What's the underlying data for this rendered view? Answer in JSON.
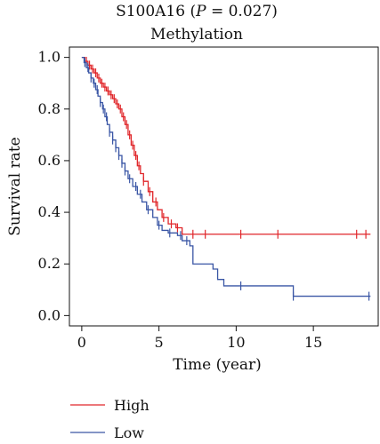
{
  "chart_data": {
    "type": "line",
    "title": "S100A16 (P = 0.027)",
    "title_parts": {
      "gene": "S100A16 (",
      "p_symbol": "P",
      "p_value": " = 0.027)"
    },
    "subtitle": "Methylation",
    "xlabel": "Time (year)",
    "ylabel": "Survival rate",
    "xlim": [
      -0.8,
      19.2
    ],
    "ylim": [
      -0.04,
      1.04
    ],
    "x_ticks": [
      0,
      5,
      10,
      15
    ],
    "x_tick_labels": [
      "0",
      "5",
      "10",
      "15"
    ],
    "y_ticks": [
      0.0,
      0.2,
      0.4,
      0.6,
      0.8,
      1.0
    ],
    "y_tick_labels": [
      "0.0",
      "0.2",
      "0.4",
      "0.6",
      "0.8",
      "1.0"
    ],
    "grid": false,
    "legend_position": "bottom-left",
    "series": [
      {
        "name": "High",
        "color": "#e0262a",
        "steps": [
          [
            0,
            1.0
          ],
          [
            0.2,
            0.985
          ],
          [
            0.4,
            0.97
          ],
          [
            0.6,
            0.955
          ],
          [
            0.8,
            0.94
          ],
          [
            1.0,
            0.92
          ],
          [
            1.2,
            0.9
          ],
          [
            1.4,
            0.885
          ],
          [
            1.6,
            0.87
          ],
          [
            1.8,
            0.855
          ],
          [
            2.0,
            0.84
          ],
          [
            2.2,
            0.82
          ],
          [
            2.4,
            0.8
          ],
          [
            2.6,
            0.77
          ],
          [
            2.8,
            0.74
          ],
          [
            3.0,
            0.7
          ],
          [
            3.2,
            0.66
          ],
          [
            3.4,
            0.62
          ],
          [
            3.6,
            0.58
          ],
          [
            3.8,
            0.55
          ],
          [
            4.0,
            0.52
          ],
          [
            4.3,
            0.48
          ],
          [
            4.6,
            0.44
          ],
          [
            4.9,
            0.41
          ],
          [
            5.2,
            0.38
          ],
          [
            5.6,
            0.355
          ],
          [
            6.1,
            0.34
          ],
          [
            6.5,
            0.315
          ],
          [
            18.7,
            0.315
          ]
        ],
        "censored_x": [
          0.3,
          0.5,
          0.7,
          0.9,
          1.1,
          1.3,
          1.5,
          1.7,
          1.9,
          2.1,
          2.3,
          2.5,
          2.7,
          2.9,
          3.1,
          3.3,
          3.5,
          3.7,
          4.0,
          4.4,
          4.8,
          5.3,
          5.8,
          6.2,
          7.2,
          8.0,
          10.3,
          12.7,
          17.8,
          18.4
        ],
        "end_x": 18.7
      },
      {
        "name": "Low",
        "color": "#3a56a5",
        "steps": [
          [
            0,
            1.0
          ],
          [
            0.15,
            0.98
          ],
          [
            0.3,
            0.96
          ],
          [
            0.45,
            0.94
          ],
          [
            0.6,
            0.92
          ],
          [
            0.75,
            0.9
          ],
          [
            0.9,
            0.875
          ],
          [
            1.05,
            0.85
          ],
          [
            1.2,
            0.825
          ],
          [
            1.35,
            0.8
          ],
          [
            1.5,
            0.77
          ],
          [
            1.65,
            0.74
          ],
          [
            1.8,
            0.71
          ],
          [
            2.0,
            0.68
          ],
          [
            2.2,
            0.65
          ],
          [
            2.4,
            0.62
          ],
          [
            2.6,
            0.59
          ],
          [
            2.8,
            0.56
          ],
          [
            3.0,
            0.53
          ],
          [
            3.3,
            0.5
          ],
          [
            3.6,
            0.47
          ],
          [
            3.9,
            0.44
          ],
          [
            4.2,
            0.41
          ],
          [
            4.6,
            0.38
          ],
          [
            4.9,
            0.35
          ],
          [
            5.2,
            0.33
          ],
          [
            5.6,
            0.32
          ],
          [
            6.2,
            0.31
          ],
          [
            6.5,
            0.29
          ],
          [
            7.0,
            0.27
          ],
          [
            7.2,
            0.2
          ],
          [
            8.5,
            0.18
          ],
          [
            8.8,
            0.14
          ],
          [
            9.2,
            0.115
          ],
          [
            13.7,
            0.075
          ],
          [
            18.7,
            0.075
          ]
        ],
        "censored_x": [
          0.2,
          0.4,
          0.6,
          0.8,
          1.0,
          1.2,
          1.4,
          1.6,
          1.8,
          2.0,
          2.2,
          2.4,
          2.6,
          2.8,
          3.1,
          3.5,
          3.8,
          4.3,
          5.0,
          5.7,
          6.4,
          6.8,
          10.3,
          13.7,
          18.6
        ],
        "end_x": 18.7
      }
    ]
  }
}
